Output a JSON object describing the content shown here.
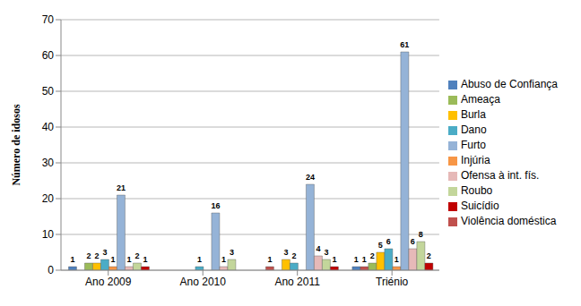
{
  "chart_data": {
    "type": "bar",
    "y_label": "Número de idosos",
    "categories": [
      "Ano 2009",
      "Ano 2010",
      "Ano 2011",
      "Triénio"
    ],
    "series": [
      {
        "name": "Abuso de Confiança",
        "color": "#4F81BD",
        "values": [
          1,
          0,
          0,
          1
        ]
      },
      {
        "name": "Violência doméstica",
        "color": "#C0504D",
        "values": [
          0,
          0,
          1,
          1
        ]
      },
      {
        "name": "Ameaça",
        "color": "#9BBB59",
        "values": [
          2,
          0,
          0,
          2
        ]
      },
      {
        "name": "Burla",
        "color": "#FFC000",
        "values": [
          2,
          0,
          3,
          5
        ]
      },
      {
        "name": "Dano",
        "color": "#4BACC6",
        "values": [
          3,
          1,
          2,
          6
        ]
      },
      {
        "name": "Injúria",
        "color": "#F79646",
        "values": [
          1,
          0,
          0,
          1
        ]
      },
      {
        "name": "Furto",
        "color": "#95B3D7",
        "values": [
          21,
          16,
          24,
          61
        ]
      },
      {
        "name": "Ofensa à int. fís.",
        "color": "#E6B9B8",
        "values": [
          1,
          1,
          4,
          6
        ]
      },
      {
        "name": "Roubo",
        "color": "#C3D69B",
        "values": [
          2,
          3,
          3,
          8
        ]
      },
      {
        "name": "Suicídio",
        "color": "#C00000",
        "values": [
          1,
          0,
          1,
          2
        ]
      }
    ],
    "ylim": [
      0,
      70
    ],
    "yticks": [
      0,
      10,
      20,
      30,
      40,
      50,
      60,
      70
    ],
    "grid": true,
    "legend": "right",
    "data_labels": true
  }
}
